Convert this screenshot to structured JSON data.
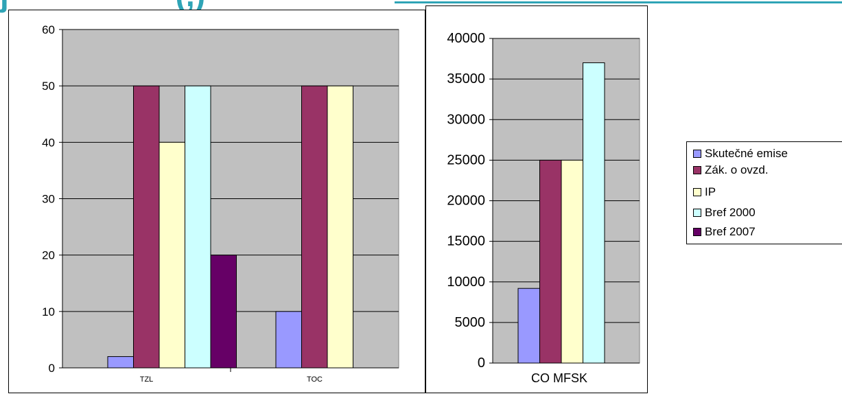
{
  "heading": {
    "fragment": "j                   (,)",
    "color": "#2fa4b6",
    "rule_color": "#2fa4b6"
  },
  "chart_data": [
    {
      "type": "bar",
      "categories": [
        "TZL",
        "TOC"
      ],
      "series": [
        {
          "name": "Skutečné emise",
          "color": "#9999ff",
          "values": [
            2,
            10
          ]
        },
        {
          "name": "Zák. o ovzd.",
          "color": "#993366",
          "values": [
            50,
            50
          ]
        },
        {
          "name": "IP",
          "color": "#ffffcc",
          "values": [
            40,
            50
          ]
        },
        {
          "name": "Bref 2000",
          "color": "#ccffff",
          "values": [
            50,
            null
          ]
        },
        {
          "name": "Bref 2007",
          "color": "#660066",
          "values": [
            20,
            null
          ]
        }
      ],
      "ylim": [
        0,
        60
      ],
      "yticks": [
        0,
        10,
        20,
        30,
        40,
        50,
        60
      ],
      "grid": true,
      "plot_background": "#c0c0c0"
    },
    {
      "type": "bar",
      "categories": [
        "CO MFSK"
      ],
      "series": [
        {
          "name": "Skutečné emise",
          "color": "#9999ff",
          "values": [
            9200
          ]
        },
        {
          "name": "Zák. o ovzd.",
          "color": "#993366",
          "values": [
            25000
          ]
        },
        {
          "name": "IP",
          "color": "#ffffcc",
          "values": [
            25000
          ]
        },
        {
          "name": "Bref 2000",
          "color": "#ccffff",
          "values": [
            37000
          ]
        }
      ],
      "ylim": [
        0,
        40000
      ],
      "yticks": [
        0,
        5000,
        10000,
        15000,
        20000,
        25000,
        30000,
        35000,
        40000
      ],
      "grid": true,
      "plot_background": "#c0c0c0"
    }
  ],
  "legend": {
    "placement": "right",
    "items": [
      {
        "label": "Skutečné emise",
        "color": "#9999ff"
      },
      {
        "label": "Zák. o ovzd.",
        "color": "#993366"
      },
      {
        "label": "IP",
        "color": "#ffffcc"
      },
      {
        "label": "Bref 2000",
        "color": "#ccffff"
      },
      {
        "label": "Bref 2007",
        "color": "#660066"
      }
    ]
  }
}
